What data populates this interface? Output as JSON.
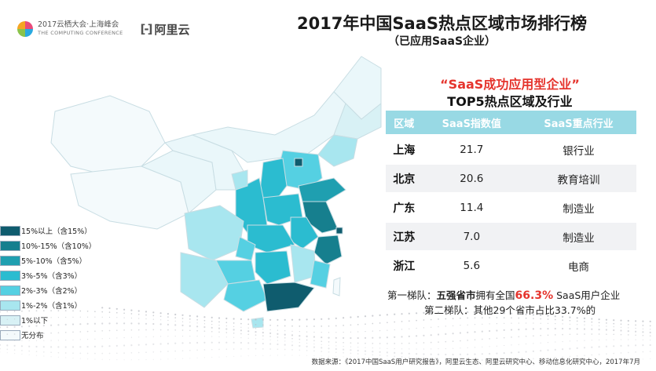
{
  "header": {
    "conf_logo_line1": "2017云栖大会·上海峰会",
    "conf_logo_line2": "THE COMPUTING CONFERENCE",
    "brand": "阿里云",
    "brand_bracket": "[-]"
  },
  "title": "2017年中国SaaS热点区域市场排行榜",
  "subtitle": "（已应用SaaS企业）",
  "ranking": {
    "heading_line1": "“SaaS成功应用型企业”",
    "heading_line2": "TOP5热点区域及行业",
    "columns": [
      "区域",
      "SaaS指数值",
      "SaaS重点行业"
    ],
    "rows": [
      {
        "region": "上海",
        "index": "21.7",
        "industry": "银行业"
      },
      {
        "region": "北京",
        "index": "20.6",
        "industry": "教育培训"
      },
      {
        "region": "广东",
        "index": "11.4",
        "industry": "制造业"
      },
      {
        "region": "江苏",
        "index": "7.0",
        "industry": "制造业"
      },
      {
        "region": "浙江",
        "index": "5.6",
        "industry": "电商"
      }
    ]
  },
  "notes": {
    "tier1_prefix": "第一梯队：",
    "tier1_strong": "五强省市",
    "tier1_mid": "拥有全国",
    "tier1_pct": "66.3%",
    "tier1_suffix": " SaaS用户企业",
    "tier2": "第二梯队：其他29个省市占比33.7%的"
  },
  "legend": [
    {
      "label": "15%以上（含15%）",
      "color": "#0f5c6e"
    },
    {
      "label": "10%-15%（含10%）",
      "color": "#167f8e"
    },
    {
      "label": "5%-10%（含5%）",
      "color": "#1f9fb0"
    },
    {
      "label": "3%-5%（含3%）",
      "color": "#2bbcd0"
    },
    {
      "label": "2%-3%（含2%）",
      "color": "#55d0e2"
    },
    {
      "label": "1%-2%（含1%）",
      "color": "#a8e6ef"
    },
    {
      "label": "1%以下",
      "color": "#d8f1f5"
    },
    {
      "label": "无分布",
      "color": "#f4fafc"
    }
  ],
  "source": "数据来源：《2017中国SaaS用户研究报告》，阿里云生态、阿里云研究中心、移动信息化研究中心，2017年7月"
}
